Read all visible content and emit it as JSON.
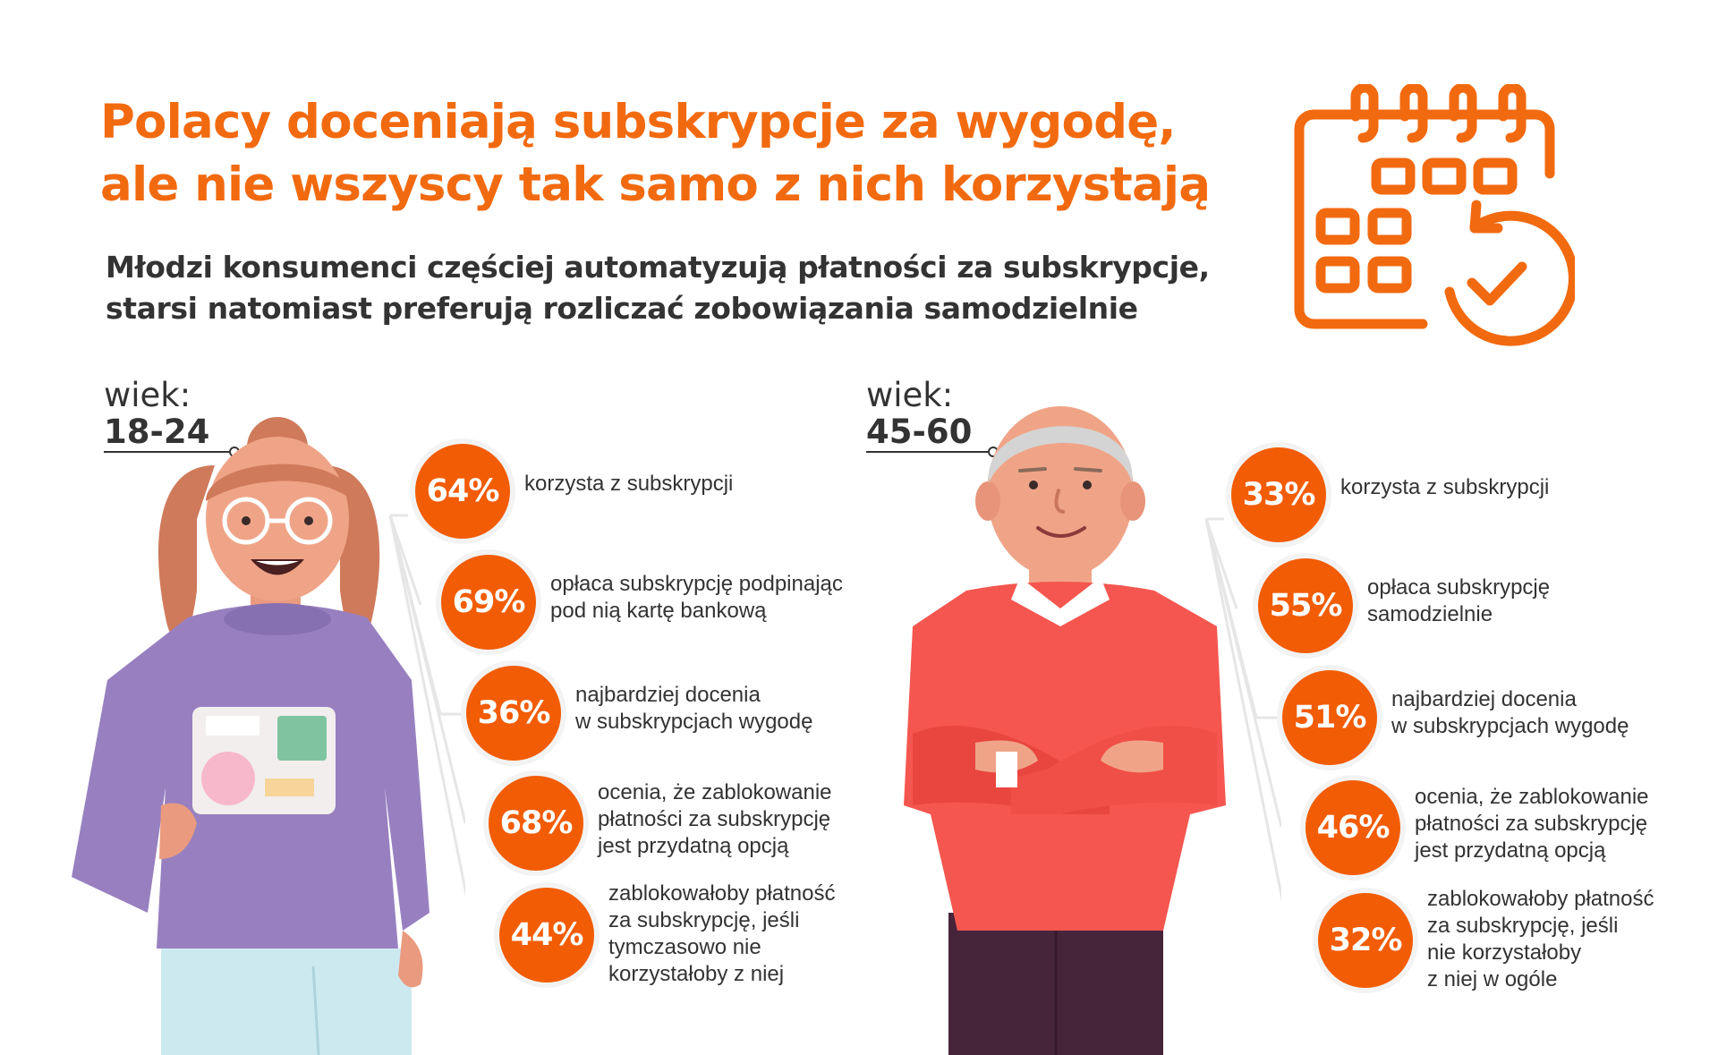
{
  "header": {
    "title_lines": [
      "Polacy doceniają subskrypcje za wygodę,",
      "ale nie wszyscy tak samo z nich korzystają"
    ],
    "subtitle_lines": [
      "Młodzi konsumenci częściej automatyzują płatności za subskrypcje,",
      "starsi natomiast preferują rozliczać zobowiązania samodzielnie"
    ]
  },
  "icons": {
    "calendar": "calendar-check-icon"
  },
  "colors": {
    "accent": "#f26a10",
    "circle": "#f25c05",
    "text": "#333333"
  },
  "groups": [
    {
      "age_label": "wiek:",
      "age_value": "18-24",
      "stats": [
        {
          "value": "64%",
          "lines": [
            "korzysta z subskrypcji"
          ]
        },
        {
          "value": "69%",
          "lines": [
            "opłaca subskrypcję podpinając",
            "pod nią kartę bankową"
          ]
        },
        {
          "value": "36%",
          "lines": [
            "najbardziej docenia",
            "w subskrypcjach wygodę"
          ]
        },
        {
          "value": "68%",
          "lines": [
            "ocenia, że zablokowanie",
            "płatności za subskrypcję",
            "jest przydatną opcją"
          ]
        },
        {
          "value": "44%",
          "lines": [
            "zablokowałoby płatność",
            "za subskrypcję, jeśli",
            "tymczasowo nie",
            "korzystałoby z niej"
          ]
        }
      ]
    },
    {
      "age_label": "wiek:",
      "age_value": "45-60",
      "stats": [
        {
          "value": "33%",
          "lines": [
            "korzysta z subskrypcji"
          ]
        },
        {
          "value": "55%",
          "lines": [
            "opłaca subskrypcję",
            "samodzielnie"
          ]
        },
        {
          "value": "51%",
          "lines": [
            "najbardziej docenia",
            "w subskrypcjach wygodę"
          ]
        },
        {
          "value": "46%",
          "lines": [
            "ocenia, że zablokowanie",
            "płatności za subskrypcję",
            "jest przydatną opcją"
          ]
        },
        {
          "value": "32%",
          "lines": [
            "zablokowałoby płatność",
            "za subskrypcję, jeśli",
            "nie korzystałoby",
            "z niej w ogóle"
          ]
        }
      ]
    }
  ]
}
